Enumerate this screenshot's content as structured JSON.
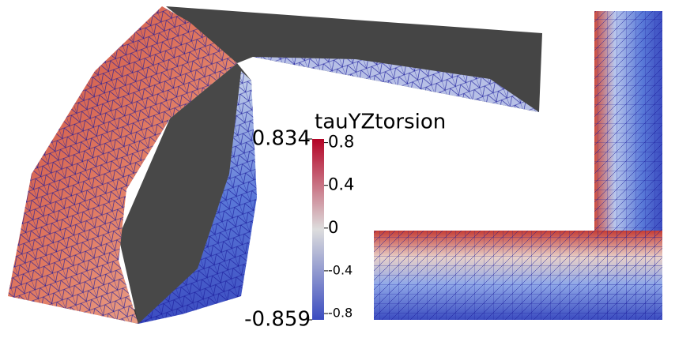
{
  "colorbar": {
    "title": "tauYZtorsion",
    "max": 0.834,
    "min": -0.859,
    "ticks": [
      0.8,
      0.4,
      0,
      -0.4,
      -0.8
    ]
  }
}
